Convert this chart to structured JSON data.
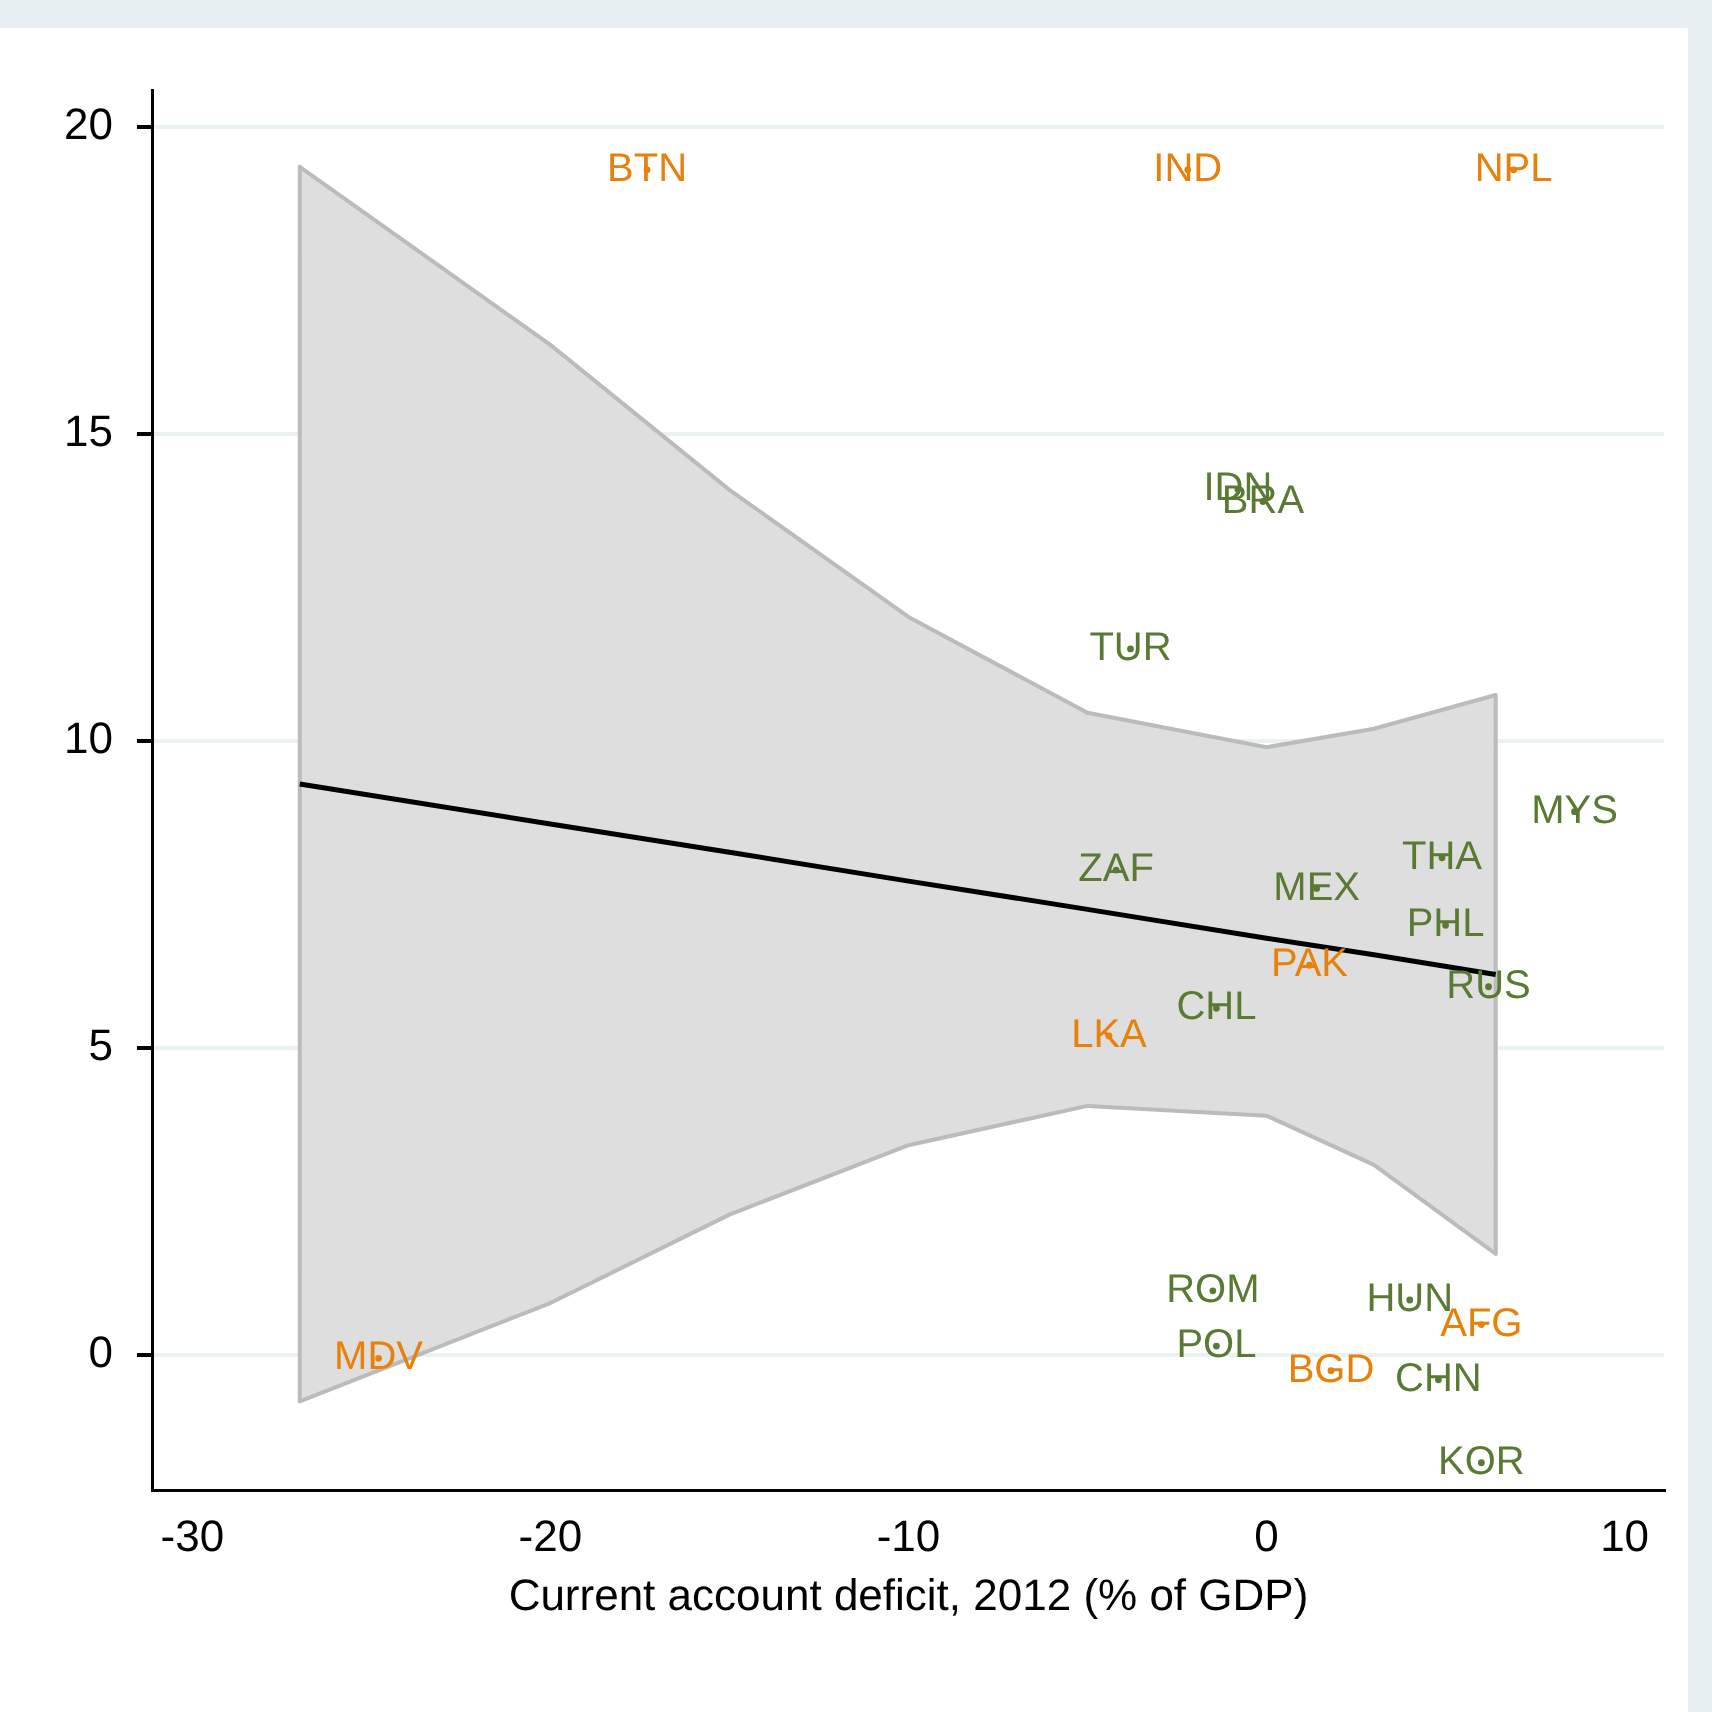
{
  "chart_data": {
    "type": "scatter",
    "xlabel": "Current account deficit, 2012 (% of GDP)",
    "xlim": [
      -31.1,
      11.1
    ],
    "xticks": [
      -30,
      -20,
      -10,
      0,
      10
    ],
    "ylim": [
      -2.2,
      20.6
    ],
    "yticks": [
      0,
      5,
      10,
      15,
      20
    ],
    "grid": "y",
    "legend": false,
    "series": [
      {
        "color": "#e8800c",
        "x": [
          -17.3,
          -2.2,
          6.9,
          1.2,
          -4.4,
          -24.8,
          6.0,
          1.8
        ],
        "values": [
          19.3,
          19.3,
          19.3,
          6.35,
          5.2,
          -0.05,
          0.5,
          -0.25
        ],
        "value_labels": [
          "BTN",
          "IND",
          "NPL",
          "PAK",
          "LKA",
          "MDV",
          "AFG",
          "BGD"
        ]
      },
      {
        "color": "#5a7a34",
        "x": [
          -0.8,
          -0.1,
          -3.8,
          8.6,
          -4.2,
          4.9,
          1.4,
          5.0,
          6.2,
          -1.4,
          -1.5,
          -1.4,
          4.0,
          4.8,
          6.0
        ],
        "values": [
          14.1,
          13.9,
          11.5,
          8.85,
          7.9,
          8.1,
          7.6,
          7.0,
          6.0,
          5.65,
          1.05,
          0.15,
          0.9,
          -0.4,
          -1.75
        ],
        "value_labels": [
          "IDN",
          "BRA",
          "TUR",
          "MYS",
          "ZAF",
          "THA",
          "MEX",
          "PHL",
          "RUS",
          "CHL",
          "ROM",
          "POL",
          "HUN",
          "CHN",
          "KOR"
        ]
      },
      {
        "type": "line",
        "color": "#000000",
        "x": [
          -27,
          -20,
          -15,
          -10,
          -5,
          0,
          3,
          6.4
        ],
        "values": [
          9.3,
          8.65,
          8.19,
          7.72,
          7.26,
          6.79,
          6.52,
          6.2
        ],
        "lower": [
          -0.75,
          0.85,
          2.29,
          3.42,
          4.06,
          3.9,
          3.1,
          1.65
        ],
        "upper": [
          19.35,
          16.45,
          14.09,
          12.02,
          10.46,
          9.9,
          10.2,
          10.75
        ]
      }
    ]
  }
}
